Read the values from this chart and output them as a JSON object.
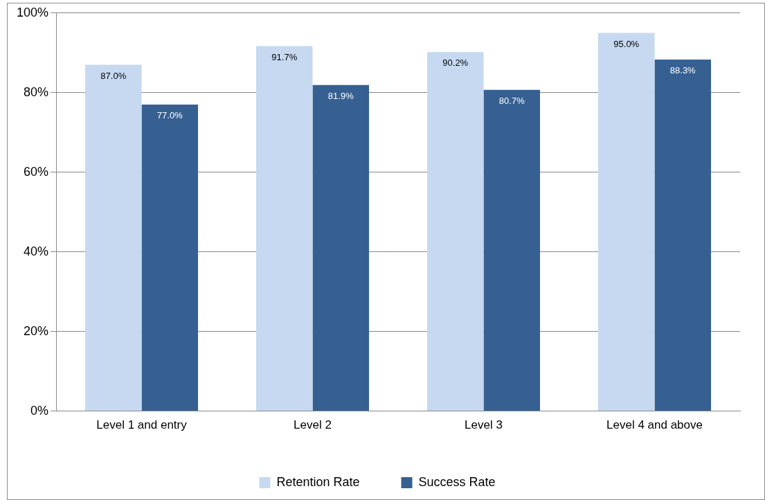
{
  "chart_data": {
    "type": "bar",
    "categories": [
      "Level 1 and entry",
      "Level 2",
      "Level 3",
      "Level 4 and above"
    ],
    "series": [
      {
        "name": "Retention Rate",
        "color": "#c6d9f1",
        "values": [
          87.0,
          91.7,
          90.2,
          95.0
        ],
        "value_labels": [
          "87.0%",
          "91.7%",
          "90.2%",
          "95.0%"
        ]
      },
      {
        "name": "Success Rate",
        "color": "#366092",
        "values": [
          77.0,
          81.9,
          80.7,
          88.3
        ],
        "value_labels": [
          "77.0%",
          "81.9%",
          "80.7%",
          "88.3%"
        ]
      }
    ],
    "ylim": [
      0,
      100
    ],
    "yticks": [
      {
        "value": 0,
        "label": "0%"
      },
      {
        "value": 20,
        "label": "20%"
      },
      {
        "value": 40,
        "label": "40%"
      },
      {
        "value": 60,
        "label": "60%"
      },
      {
        "value": 80,
        "label": "80%"
      },
      {
        "value": 100,
        "label": "100%"
      }
    ],
    "grid": "y",
    "legend": "bottom"
  }
}
